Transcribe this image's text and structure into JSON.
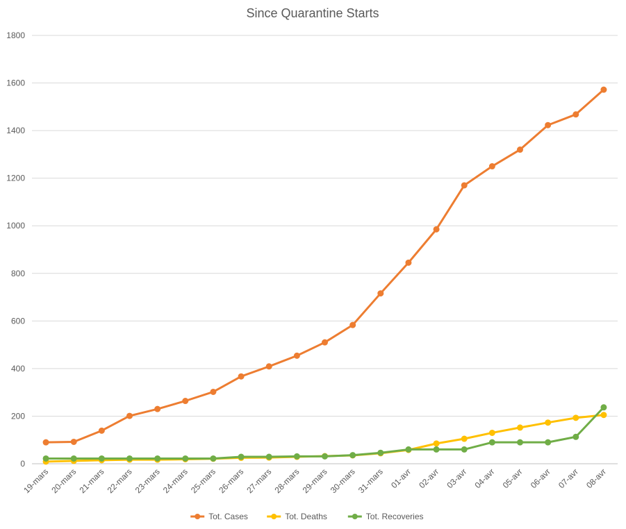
{
  "chart_data": {
    "type": "line",
    "title": "Since Quarantine Starts",
    "xlabel": "",
    "ylabel": "",
    "categories": [
      "19-mars",
      "20-mars",
      "21-mars",
      "22-mars",
      "23-mars",
      "24-mars",
      "25-mars",
      "26-mars",
      "27-mars",
      "28-mars",
      "29-mars",
      "30-mars",
      "31-mars",
      "01-avr",
      "02-avr",
      "03-avr",
      "04-avr",
      "05-avr",
      "06-avr",
      "07-avr",
      "08-avr"
    ],
    "ylim": [
      0,
      1800
    ],
    "yticks": [
      0,
      200,
      400,
      600,
      800,
      1000,
      1200,
      1400,
      1600,
      1800
    ],
    "grid": true,
    "legend_position": "bottom",
    "series": [
      {
        "name": "Tot. Cases",
        "color": "#ED7D31",
        "values": [
          90,
          92,
          139,
          201,
          230,
          264,
          302,
          367,
          409,
          454,
          510,
          583,
          716,
          845,
          985,
          1170,
          1250,
          1320,
          1423,
          1468,
          1572
        ]
      },
      {
        "name": "Tot. Deaths",
        "color": "#FFC000",
        "values": [
          9,
          12,
          15,
          17,
          17,
          19,
          21,
          25,
          26,
          29,
          32,
          35,
          44,
          58,
          85,
          105,
          130,
          152,
          173,
          193,
          205
        ]
      },
      {
        "name": "Tot. Recoveries",
        "color": "#70AD47",
        "values": [
          22,
          22,
          22,
          22,
          22,
          22,
          22,
          29,
          29,
          31,
          31,
          36,
          46,
          60,
          60,
          60,
          90,
          90,
          90,
          113,
          237
        ]
      }
    ]
  }
}
